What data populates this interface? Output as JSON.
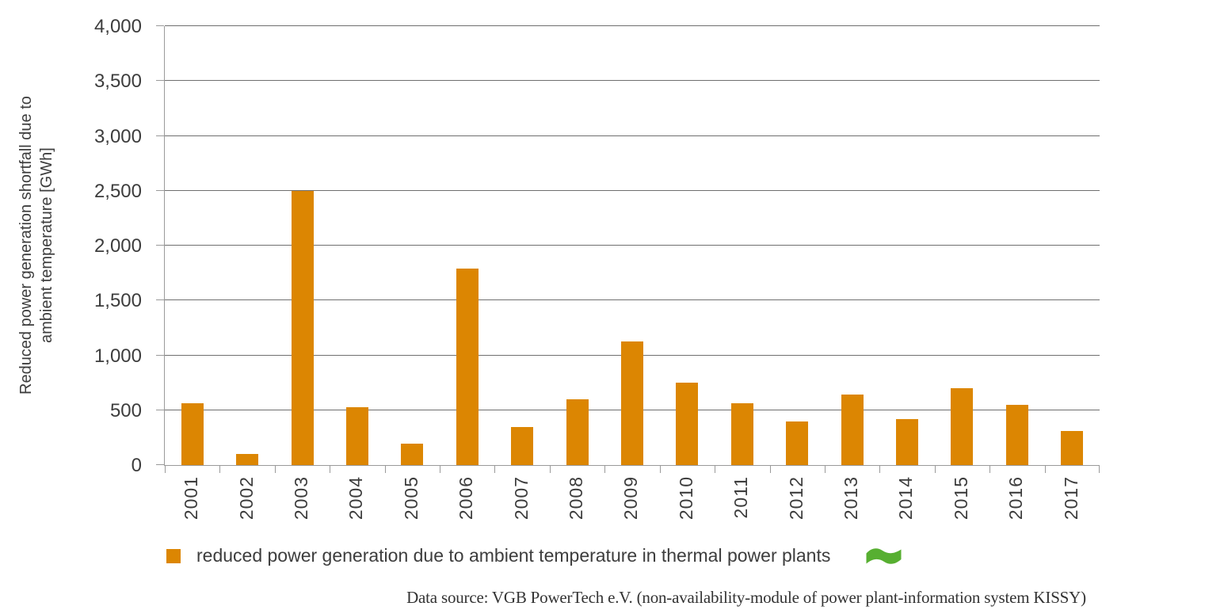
{
  "chart_data": {
    "type": "bar",
    "title": "",
    "categories": [
      "2001",
      "2002",
      "2003",
      "2004",
      "2005",
      "2006",
      "2007",
      "2008",
      "2009",
      "2010",
      "2011",
      "2012",
      "2013",
      "2014",
      "2015",
      "2016",
      "2017"
    ],
    "values": [
      560,
      100,
      2500,
      530,
      195,
      1790,
      345,
      600,
      1125,
      750,
      560,
      400,
      640,
      420,
      700,
      550,
      310
    ],
    "series_name": "reduced power generation due to ambient temperature in thermal power plants",
    "xlabel": "",
    "ylabel_lines": [
      "Reduced power generation shortfall due to",
      "ambient temperature [GWh]"
    ],
    "ylim": [
      0,
      4000
    ],
    "ytick_values": [
      0,
      500,
      1000,
      1500,
      2000,
      2500,
      3000,
      3500,
      4000
    ],
    "ytick_labels": [
      "0",
      "500",
      "1,000",
      "1,500",
      "2,000",
      "2,500",
      "3,000",
      "3,500",
      "4,000"
    ],
    "grid": true,
    "legend_position": "bottom",
    "bar_color": "#DC8602"
  },
  "legend": {
    "label": "reduced power generation due to ambient temperature in thermal power plants",
    "swatch_color": "#DC8602",
    "flag_icon": "flag-icon",
    "flag_color": "#57AF31"
  },
  "footer": {
    "source": "Data source: VGB PowerTech e.V. (non-availability-module of power plant-information system KISSY)"
  }
}
